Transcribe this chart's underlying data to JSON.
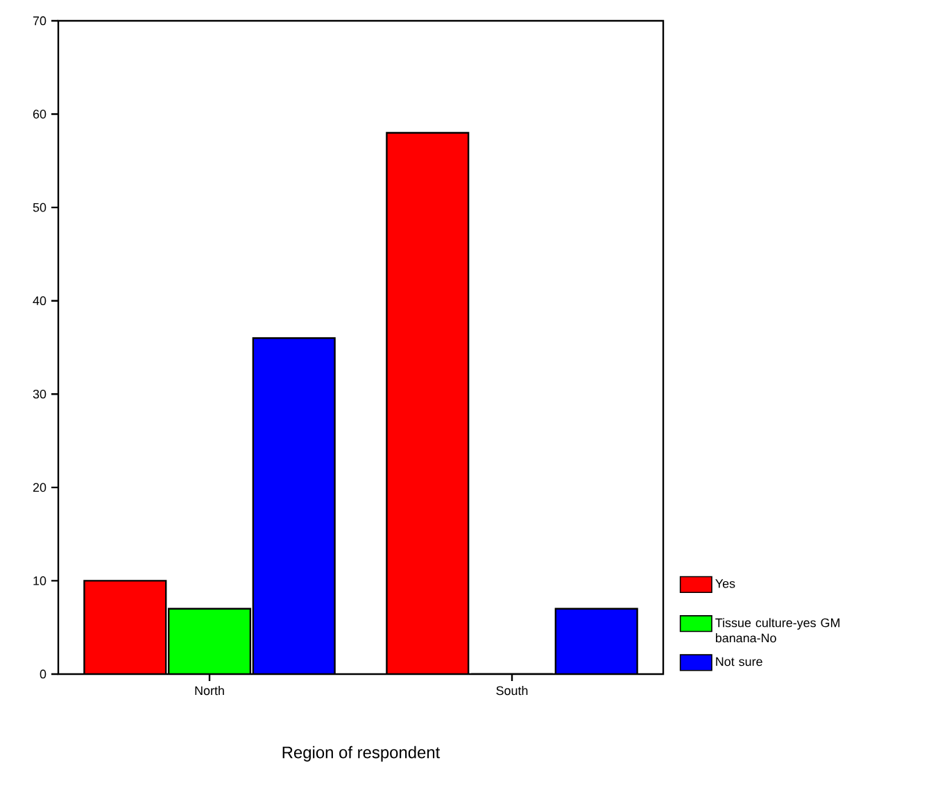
{
  "chart_data": {
    "type": "bar",
    "xlabel": "Region of respondent",
    "categories": [
      "North",
      "South"
    ],
    "series": [
      {
        "name": "Yes",
        "color": "#ff0000",
        "values": [
          10,
          58
        ]
      },
      {
        "name": "Tissue culture-yes GM banana-No",
        "color": "#00ff00",
        "values": [
          7,
          0
        ]
      },
      {
        "name": "Not sure",
        "color": "#0000ff",
        "values": [
          36,
          7
        ]
      }
    ],
    "ylim": [
      0,
      70
    ],
    "yticks": [
      0,
      10,
      20,
      30,
      40,
      50,
      60,
      70
    ],
    "legend": "right"
  }
}
